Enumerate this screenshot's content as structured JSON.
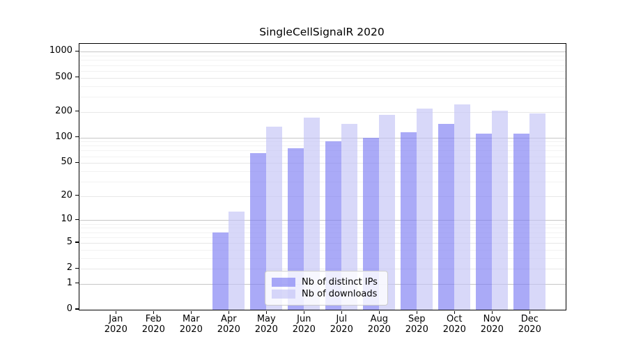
{
  "figure": {
    "background_color": "#ffffff"
  },
  "chart_data": {
    "type": "bar",
    "title": "SingleCellSignalR 2020",
    "x_tick_months": [
      "Jan",
      "Feb",
      "Mar",
      "Apr",
      "May",
      "Jun",
      "Jul",
      "Aug",
      "Sep",
      "Oct",
      "Nov",
      "Dec"
    ],
    "x_tick_year": "2020",
    "series": [
      {
        "name": "Nb of distinct IPs",
        "color": "rgba(124,124,243,0.65)",
        "values": [
          0,
          0,
          0,
          7,
          65,
          75,
          90,
          100,
          115,
          143,
          110,
          110
        ]
      },
      {
        "name": "Nb of downloads",
        "color": "rgba(195,195,246,0.65)",
        "values": [
          0,
          0,
          0,
          13,
          135,
          170,
          145,
          185,
          220,
          245,
          205,
          190
        ]
      }
    ],
    "y_axis": {
      "scale": "log10(value+1)",
      "tick_values": [
        0,
        1,
        2,
        5,
        10,
        20,
        50,
        100,
        200,
        500,
        1000
      ],
      "tick_labels": [
        "0",
        "1",
        "2",
        "5",
        "10",
        "20",
        "50",
        "100",
        "200",
        "500",
        "1000"
      ],
      "range": [
        0,
        1240
      ]
    },
    "grid": {
      "orientation": "horizontal",
      "major_color": "#c6c6c6",
      "ticked_color": "#e7e7e7",
      "minor_color": "#f2f2f2"
    },
    "legend": {
      "position": "inside-bottom-center",
      "items": [
        "Nb of distinct IPs",
        "Nb of downloads"
      ]
    }
  }
}
